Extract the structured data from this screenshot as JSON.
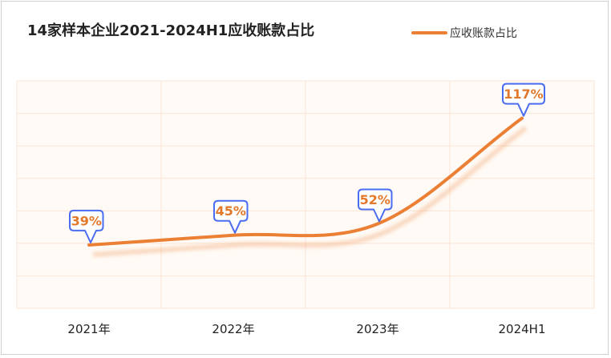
{
  "chart_data": {
    "type": "line",
    "title": "14家样本企业2021-2024H1应收账款占比",
    "categories": [
      "2021年",
      "2022年",
      "2023年",
      "2024H1"
    ],
    "series": [
      {
        "name": "应收账款占比",
        "values": [
          39,
          45,
          52,
          117
        ],
        "labels": [
          "39%",
          "45%",
          "52%",
          "117%"
        ]
      }
    ],
    "ylim": [
      0,
      140
    ],
    "grid": true,
    "legend": "top-right",
    "colors": {
      "line": "#eb7f34",
      "label_border": "#4a6cf0",
      "label_text": "#e2782a",
      "plot_bg": "#fffaf6",
      "grid": "#fbe4d4"
    }
  }
}
